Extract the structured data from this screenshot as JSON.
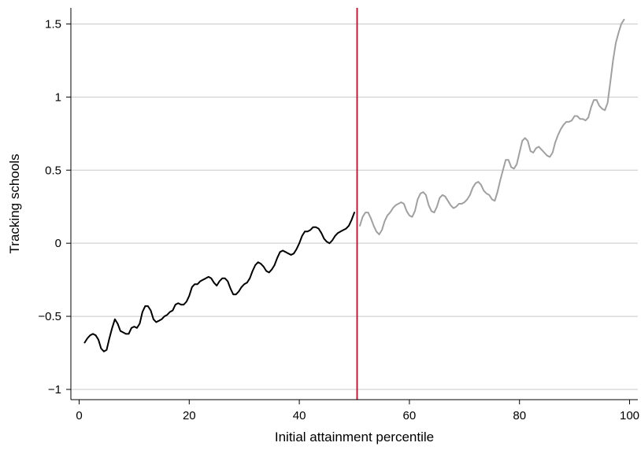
{
  "chart_data": {
    "type": "line",
    "title": "",
    "xlabel": "Initial attainment percentile",
    "ylabel": "Tracking schools",
    "xlim": [
      -1.5,
      101.5
    ],
    "ylim": [
      -1.07,
      1.61
    ],
    "xticks": [
      0,
      20,
      40,
      60,
      80,
      100
    ],
    "xtick_labels": [
      "0",
      "20",
      "40",
      "60",
      "80",
      "100"
    ],
    "yticks": [
      -1,
      -0.5,
      0,
      0.5,
      1,
      1.5
    ],
    "ytick_labels": [
      "−1",
      "−0.5",
      "0",
      "0.5",
      "1",
      "1.5"
    ],
    "grid": "horizontal",
    "legend": "none",
    "cutoff": {
      "x": 50.5,
      "color": "#b8203a"
    },
    "series": [
      {
        "color": "#000000",
        "points": [
          [
            1,
            -0.68
          ],
          [
            1.5,
            -0.65
          ],
          [
            2,
            -0.63
          ],
          [
            2.5,
            -0.62
          ],
          [
            3,
            -0.63
          ],
          [
            3.5,
            -0.66
          ],
          [
            4,
            -0.72
          ],
          [
            4.5,
            -0.74
          ],
          [
            5,
            -0.73
          ],
          [
            5.5,
            -0.65
          ],
          [
            6,
            -0.58
          ],
          [
            6.5,
            -0.52
          ],
          [
            7,
            -0.55
          ],
          [
            7.5,
            -0.6
          ],
          [
            8,
            -0.61
          ],
          [
            8.5,
            -0.62
          ],
          [
            9,
            -0.62
          ],
          [
            9.5,
            -0.58
          ],
          [
            10,
            -0.57
          ],
          [
            10.5,
            -0.58
          ],
          [
            11,
            -0.55
          ],
          [
            11.5,
            -0.47
          ],
          [
            12,
            -0.43
          ],
          [
            12.5,
            -0.43
          ],
          [
            13,
            -0.46
          ],
          [
            13.5,
            -0.52
          ],
          [
            14,
            -0.54
          ],
          [
            14.5,
            -0.53
          ],
          [
            15,
            -0.52
          ],
          [
            15.5,
            -0.5
          ],
          [
            16,
            -0.49
          ],
          [
            16.5,
            -0.47
          ],
          [
            17,
            -0.46
          ],
          [
            17.5,
            -0.42
          ],
          [
            18,
            -0.41
          ],
          [
            18.5,
            -0.42
          ],
          [
            19,
            -0.42
          ],
          [
            19.5,
            -0.4
          ],
          [
            20,
            -0.36
          ],
          [
            20.5,
            -0.3
          ],
          [
            21,
            -0.28
          ],
          [
            21.5,
            -0.28
          ],
          [
            22,
            -0.26
          ],
          [
            22.5,
            -0.25
          ],
          [
            23,
            -0.24
          ],
          [
            23.5,
            -0.23
          ],
          [
            24,
            -0.24
          ],
          [
            24.5,
            -0.27
          ],
          [
            25,
            -0.29
          ],
          [
            25.5,
            -0.26
          ],
          [
            26,
            -0.24
          ],
          [
            26.5,
            -0.24
          ],
          [
            27,
            -0.26
          ],
          [
            27.5,
            -0.31
          ],
          [
            28,
            -0.35
          ],
          [
            28.5,
            -0.35
          ],
          [
            29,
            -0.33
          ],
          [
            29.5,
            -0.3
          ],
          [
            30,
            -0.28
          ],
          [
            30.5,
            -0.27
          ],
          [
            31,
            -0.24
          ],
          [
            31.5,
            -0.19
          ],
          [
            32,
            -0.15
          ],
          [
            32.5,
            -0.13
          ],
          [
            33,
            -0.14
          ],
          [
            33.5,
            -0.16
          ],
          [
            34,
            -0.19
          ],
          [
            34.5,
            -0.2
          ],
          [
            35,
            -0.18
          ],
          [
            35.5,
            -0.15
          ],
          [
            36,
            -0.1
          ],
          [
            36.5,
            -0.06
          ],
          [
            37,
            -0.05
          ],
          [
            37.5,
            -0.06
          ],
          [
            38,
            -0.07
          ],
          [
            38.5,
            -0.08
          ],
          [
            39,
            -0.07
          ],
          [
            39.5,
            -0.04
          ],
          [
            40,
            0.0
          ],
          [
            40.5,
            0.05
          ],
          [
            41,
            0.08
          ],
          [
            41.5,
            0.08
          ],
          [
            42,
            0.09
          ],
          [
            42.5,
            0.11
          ],
          [
            43,
            0.11
          ],
          [
            43.5,
            0.1
          ],
          [
            44,
            0.07
          ],
          [
            44.5,
            0.03
          ],
          [
            45,
            0.01
          ],
          [
            45.5,
            0.0
          ],
          [
            46,
            0.02
          ],
          [
            46.5,
            0.05
          ],
          [
            47,
            0.07
          ],
          [
            47.5,
            0.08
          ],
          [
            48,
            0.09
          ],
          [
            48.5,
            0.1
          ],
          [
            49,
            0.12
          ],
          [
            49.5,
            0.16
          ],
          [
            50,
            0.21
          ]
        ]
      },
      {
        "color": "#a0a0a0",
        "points": [
          [
            51,
            0.12
          ],
          [
            51.5,
            0.18
          ],
          [
            52,
            0.21
          ],
          [
            52.5,
            0.21
          ],
          [
            53,
            0.17
          ],
          [
            53.5,
            0.12
          ],
          [
            54,
            0.08
          ],
          [
            54.5,
            0.06
          ],
          [
            55,
            0.09
          ],
          [
            55.5,
            0.15
          ],
          [
            56,
            0.19
          ],
          [
            56.5,
            0.21
          ],
          [
            57,
            0.24
          ],
          [
            57.5,
            0.26
          ],
          [
            58,
            0.27
          ],
          [
            58.5,
            0.28
          ],
          [
            59,
            0.27
          ],
          [
            59.5,
            0.22
          ],
          [
            60,
            0.19
          ],
          [
            60.5,
            0.18
          ],
          [
            61,
            0.22
          ],
          [
            61.5,
            0.3
          ],
          [
            62,
            0.34
          ],
          [
            62.5,
            0.35
          ],
          [
            63,
            0.33
          ],
          [
            63.5,
            0.26
          ],
          [
            64,
            0.22
          ],
          [
            64.5,
            0.21
          ],
          [
            65,
            0.25
          ],
          [
            65.5,
            0.31
          ],
          [
            66,
            0.33
          ],
          [
            66.5,
            0.32
          ],
          [
            67,
            0.29
          ],
          [
            67.5,
            0.26
          ],
          [
            68,
            0.24
          ],
          [
            68.5,
            0.25
          ],
          [
            69,
            0.27
          ],
          [
            69.5,
            0.27
          ],
          [
            70,
            0.28
          ],
          [
            70.5,
            0.3
          ],
          [
            71,
            0.33
          ],
          [
            71.5,
            0.38
          ],
          [
            72,
            0.41
          ],
          [
            72.5,
            0.42
          ],
          [
            73,
            0.4
          ],
          [
            73.5,
            0.36
          ],
          [
            74,
            0.34
          ],
          [
            74.5,
            0.33
          ],
          [
            75,
            0.3
          ],
          [
            75.5,
            0.29
          ],
          [
            76,
            0.35
          ],
          [
            76.5,
            0.43
          ],
          [
            77,
            0.5
          ],
          [
            77.5,
            0.57
          ],
          [
            78,
            0.57
          ],
          [
            78.5,
            0.52
          ],
          [
            79,
            0.51
          ],
          [
            79.5,
            0.54
          ],
          [
            80,
            0.62
          ],
          [
            80.5,
            0.7
          ],
          [
            81,
            0.72
          ],
          [
            81.5,
            0.7
          ],
          [
            82,
            0.63
          ],
          [
            82.5,
            0.62
          ],
          [
            83,
            0.65
          ],
          [
            83.5,
            0.66
          ],
          [
            84,
            0.64
          ],
          [
            84.5,
            0.62
          ],
          [
            85,
            0.6
          ],
          [
            85.5,
            0.59
          ],
          [
            86,
            0.62
          ],
          [
            86.5,
            0.69
          ],
          [
            87,
            0.74
          ],
          [
            87.5,
            0.78
          ],
          [
            88,
            0.81
          ],
          [
            88.5,
            0.83
          ],
          [
            89,
            0.83
          ],
          [
            89.5,
            0.84
          ],
          [
            90,
            0.87
          ],
          [
            90.5,
            0.87
          ],
          [
            91,
            0.85
          ],
          [
            91.5,
            0.85
          ],
          [
            92,
            0.84
          ],
          [
            92.5,
            0.86
          ],
          [
            93,
            0.93
          ],
          [
            93.5,
            0.98
          ],
          [
            94,
            0.98
          ],
          [
            94.5,
            0.94
          ],
          [
            95,
            0.92
          ],
          [
            95.5,
            0.91
          ],
          [
            96,
            0.96
          ],
          [
            96.5,
            1.1
          ],
          [
            97,
            1.25
          ],
          [
            97.5,
            1.37
          ],
          [
            98,
            1.44
          ],
          [
            98.5,
            1.5
          ],
          [
            99,
            1.53
          ]
        ]
      }
    ]
  }
}
